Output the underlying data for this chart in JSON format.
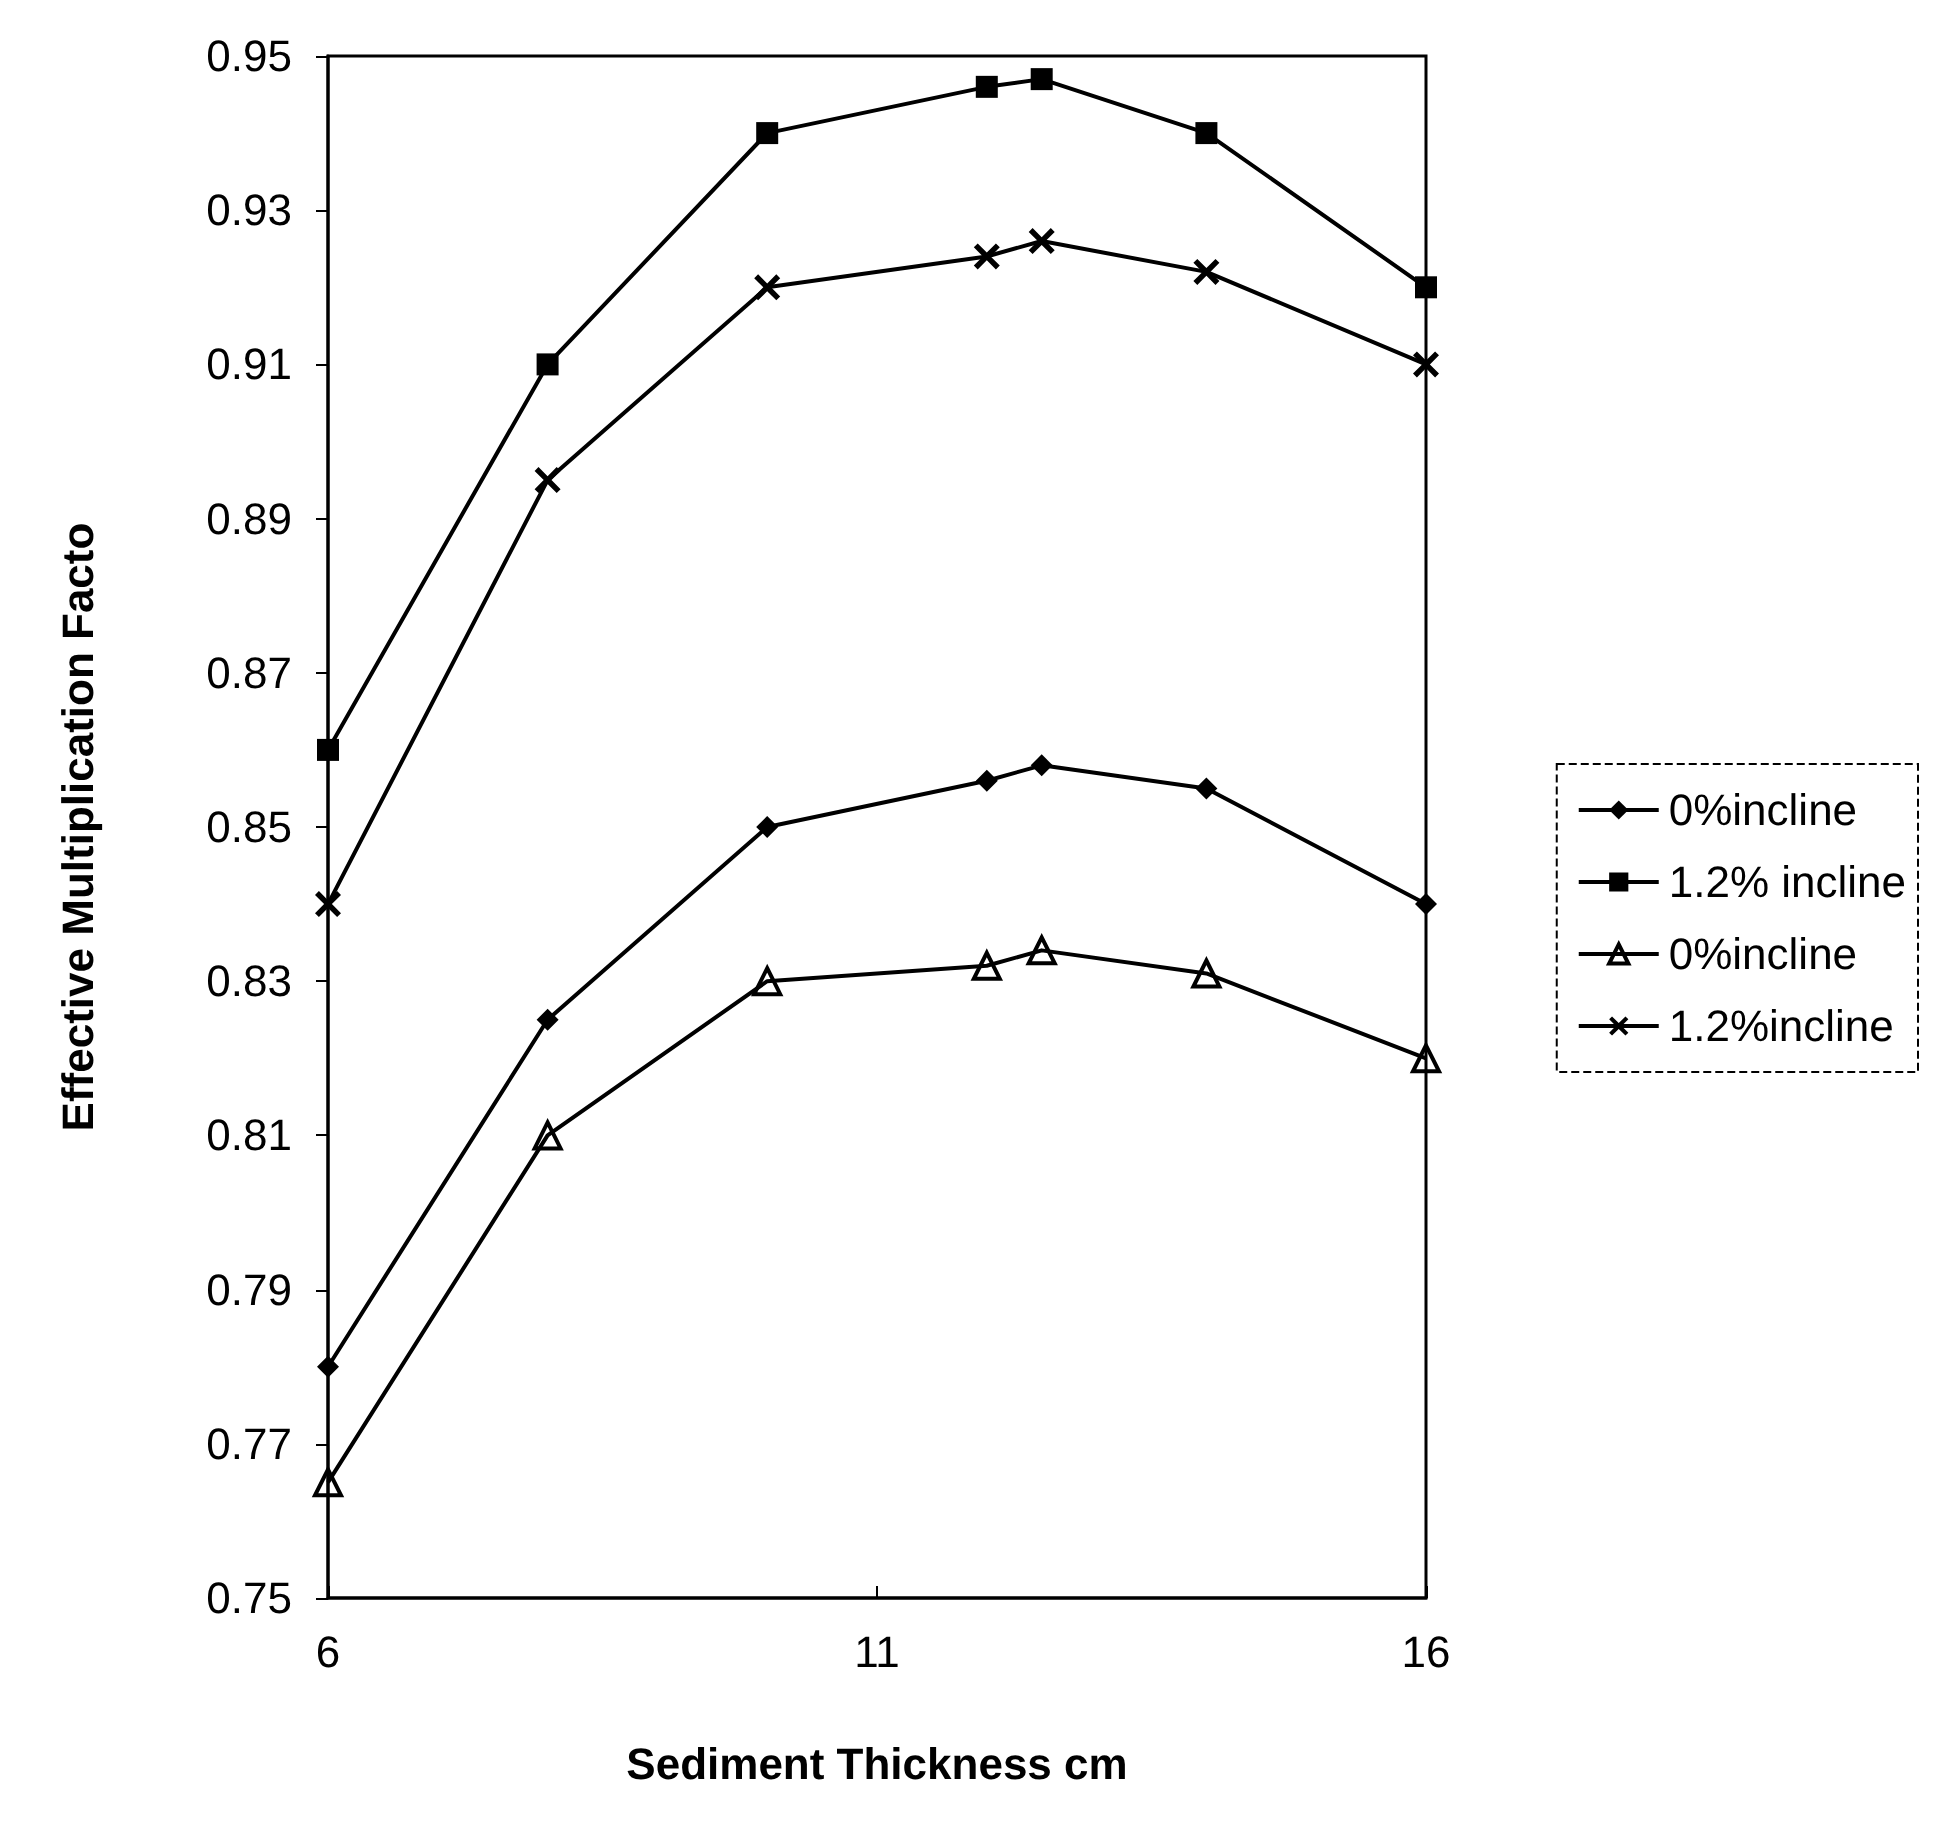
{
  "chart_data": {
    "type": "line",
    "xlabel": "Sediment Thickness cm",
    "ylabel": "Effective Multiplication Facto",
    "x": [
      6,
      8,
      10,
      12,
      12.5,
      14,
      16
    ],
    "series": [
      {
        "name": "0%incline",
        "color": "#000000",
        "marker": "diamond",
        "values": [
          0.78,
          0.825,
          0.85,
          0.856,
          0.858,
          0.855,
          0.84
        ]
      },
      {
        "name": "1.2% incline",
        "color": "#000000",
        "marker": "square",
        "values": [
          0.86,
          0.91,
          0.94,
          0.946,
          0.947,
          0.94,
          0.92
        ]
      },
      {
        "name": "0%incline",
        "color": "#000000",
        "marker": "triangle",
        "values": [
          0.765,
          0.81,
          0.83,
          0.832,
          0.834,
          0.831,
          0.82
        ]
      },
      {
        "name": "1.2%incline",
        "color": "#000000",
        "marker": "cross",
        "values": [
          0.84,
          0.895,
          0.92,
          0.924,
          0.926,
          0.922,
          0.91
        ]
      }
    ],
    "xlim": [
      6,
      16
    ],
    "xticks": [
      6,
      11,
      16
    ],
    "ylim": [
      0.75,
      0.95
    ],
    "yticks": [
      0.75,
      0.77,
      0.79,
      0.81,
      0.83,
      0.85,
      0.87,
      0.89,
      0.91,
      0.93,
      0.95
    ],
    "grid": false,
    "legend": "right",
    "line_style": "solid"
  }
}
